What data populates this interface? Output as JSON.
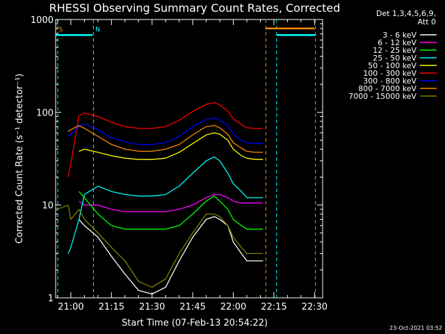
{
  "chart_data": {
    "type": "line",
    "title": "RHESSI Observing Summary Count Rates, Corrected",
    "xlabel": "Start Time (07-Feb-13 20:54:22)",
    "ylabel": "Corrected Count Rate (s⁻¹ detector⁻¹)",
    "yscale": "log",
    "ylim": [
      1,
      1000
    ],
    "xlim": [
      "20:54:22",
      "22:33:00"
    ],
    "x_ticks": [
      "21:00",
      "21:15",
      "21:30",
      "21:45",
      "22:00",
      "22:15",
      "22:30"
    ],
    "y_ticks": [
      "1",
      "10",
      "100",
      "1000"
    ],
    "legend_header": [
      "Det 1,3,4,5,6,9,",
      "Att 0"
    ],
    "legend_position": "top-right outside plot",
    "timestamp": "23-Oct-2021 03:52",
    "markers": [
      {
        "label": "S",
        "time": "20:54:30",
        "color": "#ff8c00"
      },
      {
        "label": "N",
        "time": "21:08:00",
        "color": "#00ffff"
      }
    ],
    "flags": [
      {
        "name": "saa",
        "color": "#ff8c00",
        "spans": [
          [
            "20:54:22",
            "20:55:00"
          ],
          [
            "22:12:00",
            "22:30:00"
          ]
        ],
        "level": 800
      },
      {
        "name": "night",
        "color": "#00ffff",
        "spans": [
          [
            "20:54:22",
            "21:08:00"
          ],
          [
            "22:16:00",
            "22:30:30"
          ]
        ],
        "level": 680
      }
    ],
    "vlines": [
      {
        "time": "20:55:10",
        "color": "#00ffff"
      },
      {
        "time": "21:08:20",
        "color": "#00ffff"
      },
      {
        "time": "22:12:00",
        "color": "#ff8c00"
      },
      {
        "time": "22:16:00",
        "color": "#00ffff"
      },
      {
        "time": "22:30:20",
        "color": "#ff8c00"
      }
    ],
    "times": [
      "20:55",
      "20:59",
      "21:00",
      "21:03",
      "21:05",
      "21:10",
      "21:15",
      "21:20",
      "21:25",
      "21:30",
      "21:35",
      "21:40",
      "21:45",
      "21:50",
      "21:53",
      "21:55",
      "21:58",
      "22:00",
      "22:03",
      "22:05",
      "22:08",
      "22:11"
    ],
    "series": [
      {
        "name": "3 - 6 keV",
        "color": "#ffffff",
        "values": [
          null,
          null,
          null,
          7,
          6,
          4.5,
          2.8,
          1.8,
          1.2,
          1.1,
          1.3,
          2.5,
          4.5,
          7,
          7.5,
          7,
          6,
          4,
          3,
          2.5,
          2.5,
          2.5
        ]
      },
      {
        "name": "6 - 12 keV",
        "color": "#ff00ff",
        "values": [
          null,
          null,
          null,
          11,
          10,
          10,
          9,
          8.5,
          8.5,
          8.5,
          8.5,
          9,
          10,
          12,
          13,
          13,
          12,
          11,
          10.5,
          10.5,
          10.5,
          10.5
        ]
      },
      {
        "name": "12 - 25 keV",
        "color": "#00ff00",
        "values": [
          null,
          null,
          null,
          14,
          12,
          8,
          6,
          5.5,
          5.5,
          5.5,
          5.5,
          6,
          8,
          11,
          12.5,
          11,
          9,
          7,
          6,
          5.5,
          5.5,
          5.5
        ]
      },
      {
        "name": "25 - 50 keV",
        "color": "#00ffff",
        "values": [
          null,
          3,
          3.5,
          7,
          13,
          16,
          14,
          13,
          12.5,
          12.5,
          13,
          16,
          22,
          30,
          33,
          30,
          22,
          17,
          14,
          12,
          12,
          12
        ]
      },
      {
        "name": "50 - 100 keV",
        "color": "#ffff00",
        "values": [
          null,
          null,
          null,
          38,
          40,
          37,
          34,
          32,
          31,
          31,
          32,
          37,
          46,
          57,
          60,
          58,
          50,
          40,
          34,
          32,
          31,
          31
        ]
      },
      {
        "name": "100 - 300 keV",
        "color": "#ff0000",
        "values": [
          null,
          20,
          28,
          92,
          98,
          90,
          78,
          70,
          67,
          67,
          70,
          82,
          102,
          122,
          127,
          120,
          103,
          85,
          74,
          68,
          67,
          67
        ]
      },
      {
        "name": "300 - 800 keV",
        "color": "#0000ff",
        "values": [
          null,
          55,
          58,
          70,
          75,
          65,
          53,
          48,
          45,
          45,
          47,
          55,
          70,
          83,
          87,
          83,
          72,
          58,
          50,
          47,
          46,
          46
        ]
      },
      {
        "name": "800 - 7000 keV",
        "color": "#ff8c00",
        "values": [
          null,
          62,
          65,
          72,
          67,
          55,
          45,
          40,
          38,
          38,
          40,
          45,
          57,
          70,
          72,
          68,
          58,
          47,
          41,
          38,
          37,
          37
        ]
      },
      {
        "name": "7000 - 15000 keV",
        "color": "#808000",
        "values": [
          9,
          10,
          7,
          9,
          7,
          5,
          3.5,
          2.5,
          1.5,
          1.3,
          1.6,
          3,
          5,
          8,
          8,
          7.5,
          6,
          4.5,
          3.5,
          3,
          3,
          3
        ]
      }
    ]
  }
}
